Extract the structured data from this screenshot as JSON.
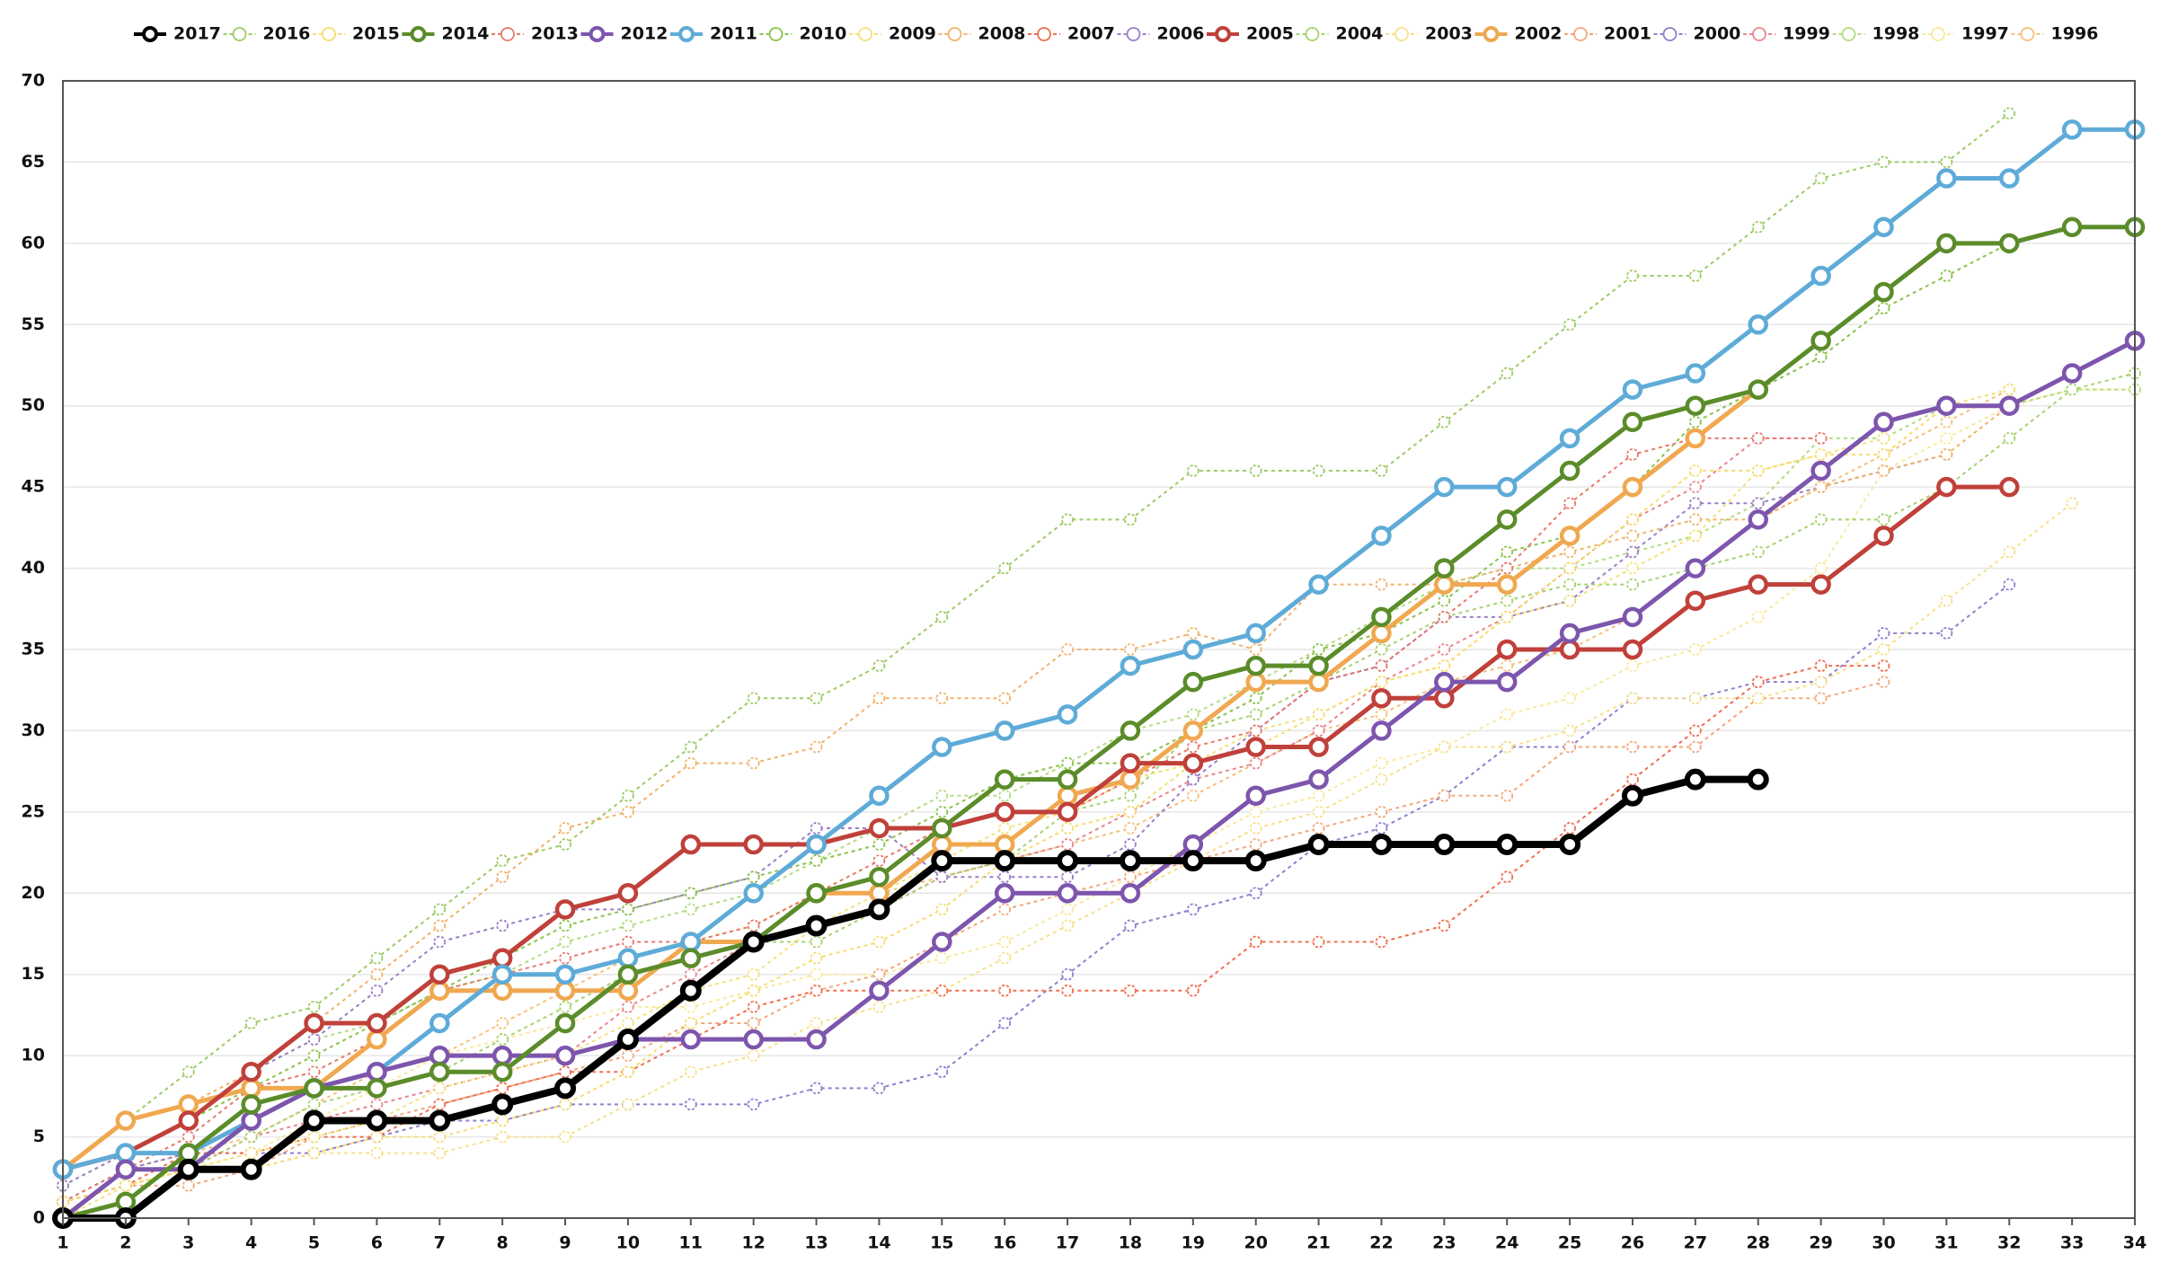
{
  "chart_data": {
    "type": "line",
    "x": [
      1,
      2,
      3,
      4,
      5,
      6,
      7,
      8,
      9,
      10,
      11,
      12,
      13,
      14,
      15,
      16,
      17,
      18,
      19,
      20,
      21,
      22,
      23,
      24,
      25,
      26,
      27,
      28,
      29,
      30,
      31,
      32,
      33,
      34
    ],
    "xlim": [
      1,
      34
    ],
    "ylim": [
      0,
      70
    ],
    "yticks": [
      0,
      5,
      10,
      15,
      20,
      25,
      30,
      35,
      40,
      45,
      50,
      55,
      60,
      65,
      70
    ],
    "grid": true,
    "legend": "top",
    "series": [
      {
        "name": "2017",
        "color": "#000000",
        "style": "solid",
        "values": [
          0,
          0,
          3,
          3,
          6,
          6,
          6,
          7,
          8,
          11,
          14,
          17,
          18,
          19,
          22,
          22,
          22,
          22,
          22,
          22,
          23,
          23,
          23,
          23,
          23,
          26,
          27,
          27,
          null,
          null,
          null,
          null,
          null,
          null
        ]
      },
      {
        "name": "2016",
        "color": "#9ccc65",
        "style": "dotted",
        "values": [
          3,
          6,
          9,
          12,
          13,
          16,
          19,
          22,
          23,
          26,
          29,
          32,
          32,
          34,
          37,
          40,
          43,
          43,
          46,
          46,
          46,
          46,
          49,
          52,
          55,
          58,
          58,
          61,
          64,
          65,
          65,
          68,
          null,
          null
        ]
      },
      {
        "name": "2015",
        "color": "#f7dc6f",
        "style": "dotted",
        "values": [
          1,
          2,
          3,
          3,
          4,
          5,
          5,
          6,
          7,
          9,
          12,
          14,
          16,
          17,
          19,
          22,
          24,
          25,
          28,
          29,
          31,
          33,
          34,
          37,
          40,
          43,
          46,
          46,
          47,
          47,
          50,
          51,
          null,
          null
        ]
      },
      {
        "name": "2014",
        "color": "#5b8c2a",
        "style": "solid",
        "values": [
          0,
          1,
          4,
          7,
          8,
          8,
          9,
          9,
          12,
          15,
          16,
          17,
          20,
          21,
          24,
          27,
          27,
          30,
          33,
          34,
          34,
          37,
          40,
          43,
          46,
          49,
          50,
          51,
          54,
          57,
          60,
          60,
          61,
          61
        ]
      },
      {
        "name": "2013",
        "color": "#e8786b",
        "style": "dotted",
        "values": [
          1,
          3,
          5,
          8,
          9,
          11,
          14,
          15,
          16,
          17,
          17,
          18,
          20,
          22,
          24,
          25,
          25,
          27,
          29,
          30,
          33,
          34,
          37,
          40,
          44,
          47,
          48,
          48,
          48,
          null,
          null,
          null,
          null,
          null
        ]
      },
      {
        "name": "2012",
        "color": "#7d55ad",
        "style": "solid",
        "values": [
          0,
          3,
          3,
          6,
          8,
          9,
          10,
          10,
          10,
          11,
          11,
          11,
          11,
          14,
          17,
          20,
          20,
          20,
          23,
          26,
          27,
          30,
          33,
          33,
          36,
          37,
          40,
          43,
          46,
          49,
          50,
          50,
          52,
          54
        ]
      },
      {
        "name": "2011",
        "color": "#5eabd8",
        "style": "solid",
        "values": [
          3,
          4,
          4,
          6,
          8,
          9,
          12,
          15,
          15,
          16,
          17,
          20,
          23,
          26,
          29,
          30,
          31,
          34,
          35,
          36,
          39,
          42,
          45,
          45,
          48,
          51,
          52,
          55,
          58,
          61,
          64,
          64,
          67,
          67
        ]
      },
      {
        "name": "2010",
        "color": "#8bc34a",
        "style": "dotted",
        "values": [
          3,
          4,
          6,
          8,
          10,
          12,
          14,
          16,
          18,
          19,
          20,
          21,
          22,
          23,
          25,
          27,
          28,
          28,
          30,
          32,
          35,
          36,
          38,
          41,
          42,
          45,
          49,
          51,
          53,
          56,
          58,
          60,
          null,
          null
        ]
      },
      {
        "name": "2009",
        "color": "#f4e27a",
        "style": "dotted",
        "values": [
          0,
          2,
          3,
          4,
          5,
          6,
          8,
          9,
          10,
          12,
          14,
          15,
          18,
          20,
          22,
          24,
          25,
          27,
          28,
          30,
          31,
          33,
          34,
          37,
          38,
          40,
          42,
          46,
          47,
          48,
          null,
          null,
          null,
          null
        ]
      },
      {
        "name": "2008",
        "color": "#f2b36b",
        "style": "dotted",
        "values": [
          3,
          6,
          7,
          9,
          12,
          15,
          18,
          21,
          24,
          25,
          28,
          28,
          29,
          32,
          32,
          32,
          35,
          35,
          36,
          35,
          39,
          39,
          39,
          40,
          41,
          42,
          43,
          43,
          45,
          46,
          47,
          50,
          null,
          null
        ]
      },
      {
        "name": "2007",
        "color": "#ef6f4f",
        "style": "dotted",
        "values": [
          1,
          2,
          4,
          4,
          5,
          5,
          7,
          8,
          9,
          9,
          11,
          13,
          14,
          14,
          14,
          14,
          14,
          14,
          14,
          17,
          17,
          17,
          18,
          21,
          24,
          27,
          30,
          33,
          34,
          34,
          null,
          null,
          null,
          null
        ]
      },
      {
        "name": "2006",
        "color": "#9b7fc7",
        "style": "dotted",
        "values": [
          2,
          4,
          6,
          9,
          11,
          14,
          17,
          18,
          19,
          19,
          20,
          21,
          24,
          24,
          21,
          21,
          21,
          23,
          27,
          30,
          33,
          34,
          37,
          37,
          38,
          41,
          44,
          44,
          45,
          46,
          47,
          null,
          null,
          null
        ]
      },
      {
        "name": "2005",
        "color": "#c0403a",
        "style": "solid",
        "values": [
          3,
          4,
          6,
          9,
          12,
          12,
          15,
          16,
          19,
          20,
          23,
          23,
          23,
          24,
          24,
          25,
          25,
          28,
          28,
          29,
          29,
          32,
          32,
          35,
          35,
          35,
          38,
          39,
          39,
          42,
          45,
          45,
          null,
          null
        ]
      },
      {
        "name": "2004",
        "color": "#a5d36e",
        "style": "dotted",
        "values": [
          1,
          2,
          3,
          5,
          7,
          8,
          9,
          11,
          13,
          15,
          16,
          17,
          17,
          19,
          21,
          22,
          25,
          26,
          30,
          31,
          33,
          35,
          37,
          38,
          39,
          39,
          40,
          41,
          43,
          43,
          45,
          48,
          51,
          52
        ]
      },
      {
        "name": "2003",
        "color": "#f8e08a",
        "style": "dotted",
        "values": [
          1,
          2,
          3,
          3,
          4,
          4,
          4,
          5,
          5,
          7,
          9,
          10,
          12,
          13,
          14,
          16,
          18,
          20,
          22,
          24,
          25,
          27,
          29,
          29,
          30,
          32,
          32,
          32,
          33,
          35,
          38,
          41,
          44,
          null
        ]
      },
      {
        "name": "2002",
        "color": "#f0a850",
        "style": "solid",
        "values": [
          3,
          6,
          7,
          8,
          8,
          11,
          14,
          14,
          14,
          14,
          17,
          17,
          20,
          20,
          23,
          23,
          26,
          27,
          30,
          33,
          33,
          36,
          39,
          39,
          42,
          45,
          48,
          51,
          null,
          null,
          null,
          null,
          null,
          null
        ]
      },
      {
        "name": "2001",
        "color": "#f2a77c",
        "style": "dotted",
        "values": [
          1,
          2,
          2,
          3,
          5,
          6,
          7,
          8,
          9,
          10,
          12,
          12,
          14,
          15,
          17,
          19,
          20,
          21,
          22,
          23,
          24,
          25,
          26,
          26,
          29,
          29,
          29,
          32,
          32,
          33,
          null,
          null,
          null,
          null
        ]
      },
      {
        "name": "2000",
        "color": "#8f7fd0",
        "style": "dotted",
        "values": [
          1,
          3,
          4,
          4,
          4,
          5,
          6,
          6,
          7,
          7,
          7,
          7,
          8,
          8,
          9,
          12,
          15,
          18,
          19,
          20,
          23,
          24,
          26,
          29,
          29,
          32,
          32,
          33,
          33,
          36,
          36,
          39,
          null,
          null
        ]
      },
      {
        "name": "1999",
        "color": "#e8868c",
        "style": "dotted",
        "values": [
          1,
          2,
          3,
          5,
          6,
          7,
          8,
          9,
          10,
          13,
          15,
          17,
          18,
          19,
          21,
          22,
          23,
          25,
          27,
          28,
          30,
          33,
          35,
          37,
          40,
          43,
          45,
          48,
          48,
          null,
          null,
          null,
          null,
          null
        ]
      },
      {
        "name": "1998",
        "color": "#b3dc80",
        "style": "dotted",
        "values": [
          2,
          4,
          6,
          9,
          11,
          12,
          14,
          15,
          17,
          18,
          19,
          20,
          22,
          24,
          26,
          26,
          28,
          30,
          31,
          33,
          35,
          37,
          39,
          40,
          40,
          41,
          42,
          44,
          48,
          48,
          50,
          50,
          51,
          51
        ]
      },
      {
        "name": "1997",
        "color": "#f9e99a",
        "style": "dotted",
        "values": [
          1,
          2,
          3,
          4,
          6,
          8,
          10,
          11,
          12,
          13,
          13,
          14,
          15,
          15,
          16,
          17,
          19,
          21,
          23,
          25,
          26,
          28,
          29,
          31,
          32,
          34,
          35,
          37,
          40,
          46,
          48,
          50,
          51,
          51
        ]
      },
      {
        "name": "1996",
        "color": "#f5c07a",
        "style": "dotted",
        "values": [
          0,
          3,
          4,
          5,
          7,
          9,
          10,
          12,
          14,
          16,
          17,
          18,
          20,
          20,
          21,
          22,
          23,
          24,
          26,
          28,
          30,
          31,
          33,
          34,
          35,
          37,
          40,
          43,
          45,
          47,
          49,
          51,
          null,
          null
        ]
      }
    ]
  }
}
